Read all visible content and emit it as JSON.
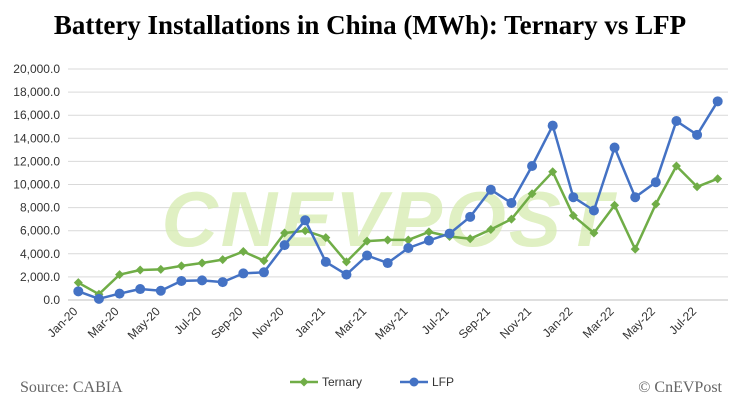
{
  "chart_data": {
    "type": "line",
    "title": "Battery Installations in China (MWh): Ternary vs LFP",
    "xlabel": "",
    "ylabel": "",
    "ylim": [
      0,
      20000
    ],
    "y_ticks": [
      "0.0",
      "2,000.0",
      "4,000.0",
      "6,000.0",
      "8,000.0",
      "10,000.0",
      "12,000.0",
      "14,000.0",
      "16,000.0",
      "18,000.0",
      "20,000.0"
    ],
    "categories": [
      "Jan-20",
      "Feb-20",
      "Mar-20",
      "Apr-20",
      "May-20",
      "Jun-20",
      "Jul-20",
      "Aug-20",
      "Sep-20",
      "Oct-20",
      "Nov-20",
      "Dec-20",
      "Jan-21",
      "Feb-21",
      "Mar-21",
      "Apr-21",
      "May-21",
      "Jun-21",
      "Jul-21",
      "Aug-21",
      "Sep-21",
      "Oct-21",
      "Nov-21",
      "Dec-21",
      "Jan-22",
      "Feb-22",
      "Mar-22",
      "Apr-22",
      "May-22",
      "Jun-22",
      "Jul-22",
      "Aug-22"
    ],
    "x_tick_labels": [
      "Jan-20",
      "Mar-20",
      "May-20",
      "Jul-20",
      "Sep-20",
      "Nov-20",
      "Jan-21",
      "Mar-21",
      "May-21",
      "Jul-21",
      "Sep-21",
      "Nov-21",
      "Jan-22",
      "Mar-22",
      "May-22",
      "Jul-22"
    ],
    "grid": true,
    "legend_position": "bottom",
    "series": [
      {
        "name": "Ternary",
        "color": "#70ad47",
        "marker": "diamond",
        "values": [
          1500,
          500,
          2200,
          2600,
          2650,
          2950,
          3200,
          3500,
          4200,
          3400,
          5800,
          6000,
          5400,
          3300,
          5100,
          5200,
          5200,
          5900,
          5500,
          5300,
          6100,
          7000,
          9200,
          11100,
          7300,
          5800,
          8200,
          4400,
          8300,
          11600,
          9800,
          10500
        ]
      },
      {
        "name": "LFP",
        "color": "#4472c4",
        "marker": "circle",
        "values": [
          750,
          100,
          550,
          950,
          800,
          1650,
          1700,
          1550,
          2300,
          2400,
          4750,
          6900,
          3300,
          2200,
          3850,
          3200,
          4500,
          5150,
          5750,
          7200,
          9550,
          8400,
          11600,
          15100,
          8900,
          7750,
          13200,
          8900,
          10200,
          15500,
          14300,
          17200
        ]
      }
    ]
  },
  "footer": {
    "source": "Source: CABIA",
    "credit": "© CnEVPost"
  },
  "watermark": "CNEVPOST"
}
